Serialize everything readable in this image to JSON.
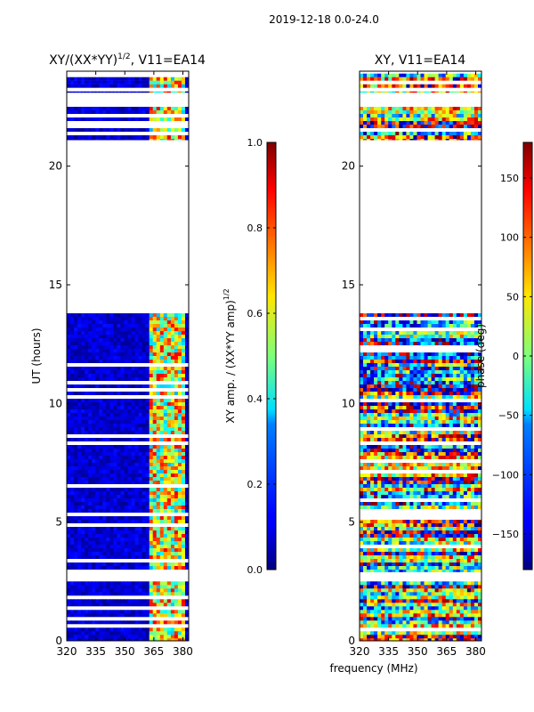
{
  "suptitle": "2019-12-18 0.0-24.0",
  "chart_data": [
    {
      "type": "heatmap",
      "title": "XY/(XX*YY)",
      "title_sup": "1/2",
      "title_suffix": ", V11=EA14",
      "ylabel": "UT (hours)",
      "xlim": [
        320,
        383
      ],
      "ylim": [
        0,
        24
      ],
      "xticks": [
        "320",
        "335",
        "350",
        "365",
        "380"
      ],
      "xtick_values": [
        320,
        335,
        350,
        365,
        380
      ],
      "yticks": [
        "0",
        "5",
        "10",
        "15",
        "20"
      ],
      "ytick_values": [
        0,
        5,
        10,
        15,
        20
      ],
      "colormap": "jet",
      "data_bands_ut": [
        [
          0,
          2.5
        ],
        [
          2.9,
          13.8
        ],
        [
          21.1,
          22.5
        ],
        [
          23.1,
          23.9
        ]
      ],
      "empty_band_ut": [
        13.8,
        21.1
      ],
      "colorbar": {
        "label": "XY amp. / (XX*YY amp)",
        "label_sup": "1/2",
        "range": [
          0.0,
          1.0
        ],
        "ticks": [
          "0.0",
          "0.2",
          "0.4",
          "0.6",
          "0.8",
          "1.0"
        ],
        "tick_values": [
          0.0,
          0.2,
          0.4,
          0.6,
          0.8,
          1.0
        ]
      }
    },
    {
      "type": "heatmap",
      "title": "XY, V11=EA14",
      "xlim": [
        320,
        383
      ],
      "ylim": [
        0,
        24
      ],
      "xticks": [
        "320",
        "335",
        "350",
        "365",
        "380"
      ],
      "xtick_values": [
        320,
        335,
        350,
        365,
        380
      ],
      "yticks": [
        "0",
        "5",
        "10",
        "15",
        "20"
      ],
      "ytick_values": [
        0,
        5,
        10,
        15,
        20
      ],
      "colormap": "jet",
      "data_bands_ut": [
        [
          0,
          2.5
        ],
        [
          2.9,
          13.8
        ],
        [
          21.1,
          22.5
        ],
        [
          23.1,
          23.9
        ]
      ],
      "empty_band_ut": [
        13.8,
        21.1
      ],
      "colorbar": {
        "label": "phase (deg)",
        "range": [
          -180,
          180
        ],
        "ticks": [
          "−150",
          "−100",
          "−50",
          "0",
          "50",
          "100",
          "150"
        ],
        "tick_values": [
          -150,
          -100,
          -50,
          0,
          50,
          100,
          150
        ]
      }
    }
  ],
  "xlabel": "frequency (MHz)"
}
